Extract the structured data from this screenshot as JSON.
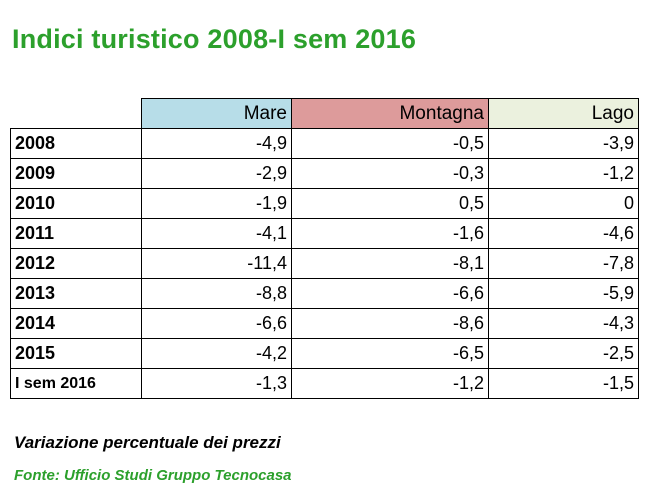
{
  "title": "Indici turistico 2008-I sem 2016",
  "table": {
    "headers": [
      "Mare",
      "Montagna",
      "Lago"
    ],
    "rows": [
      {
        "year": "2008",
        "mare": "-4,9",
        "montagna": "-0,5",
        "lago": "-3,9"
      },
      {
        "year": "2009",
        "mare": "-2,9",
        "montagna": "-0,3",
        "lago": "-1,2"
      },
      {
        "year": "2010",
        "mare": "-1,9",
        "montagna": "0,5",
        "lago": "0"
      },
      {
        "year": "2011",
        "mare": "-4,1",
        "montagna": "-1,6",
        "lago": "-4,6"
      },
      {
        "year": "2012",
        "mare": "-11,4",
        "montagna": "-8,1",
        "lago": "-7,8"
      },
      {
        "year": "2013",
        "mare": "-8,8",
        "montagna": "-6,6",
        "lago": "-5,9"
      },
      {
        "year": "2014",
        "mare": "-6,6",
        "montagna": "-8,6",
        "lago": "-4,3"
      },
      {
        "year": "2015",
        "mare": "-4,2",
        "montagna": "-6,5",
        "lago": "-2,5"
      },
      {
        "year": "I sem 2016",
        "mare": "-1,3",
        "montagna": "-1,2",
        "lago": "-1,5"
      }
    ]
  },
  "note": "Variazione percentuale dei prezzi",
  "source": "Fonte: Ufficio Studi Gruppo Tecnocasa",
  "colors": {
    "title": "#2ca02c",
    "mare_header": "#b7dde8",
    "montagna_header": "#dd9b9b",
    "lago_header": "#ebf1de"
  }
}
